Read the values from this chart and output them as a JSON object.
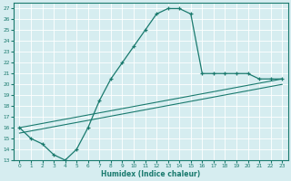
{
  "xlabel": "Humidex (Indice chaleur)",
  "ylabel": "",
  "bg_color": "#d6edf0",
  "line_color": "#1a7a6e",
  "xlim": [
    -0.5,
    23.5
  ],
  "ylim": [
    13,
    27.5
  ],
  "xticks": [
    0,
    1,
    2,
    3,
    4,
    5,
    6,
    7,
    8,
    9,
    10,
    11,
    12,
    13,
    14,
    15,
    16,
    17,
    18,
    19,
    20,
    21,
    22,
    23
  ],
  "yticks": [
    13,
    14,
    15,
    16,
    17,
    18,
    19,
    20,
    21,
    22,
    23,
    24,
    25,
    26,
    27
  ],
  "curve1_x": [
    0,
    1,
    2,
    3,
    4,
    5,
    6,
    7,
    8,
    9,
    10,
    11,
    12,
    13,
    14,
    15,
    16,
    17,
    18,
    19,
    20,
    21,
    22,
    23
  ],
  "curve1_y": [
    16.0,
    15.0,
    14.5,
    13.5,
    13.0,
    14.0,
    16.0,
    18.5,
    20.5,
    22.0,
    23.5,
    25.0,
    26.5,
    27.0,
    27.0,
    26.5,
    21.0,
    21.0,
    21.0,
    21.0,
    21.0,
    20.5,
    20.5,
    20.5
  ]
}
